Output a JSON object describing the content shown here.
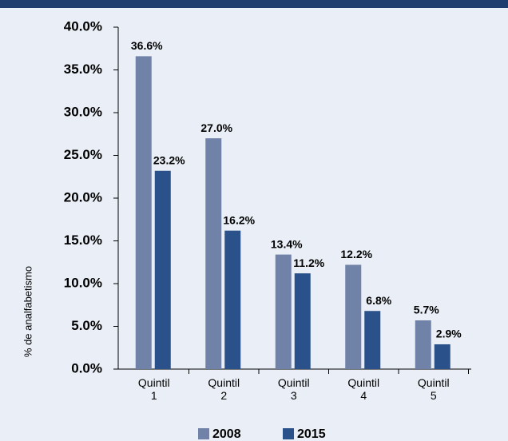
{
  "chart_data": {
    "type": "bar",
    "y_label": "% de analfabetismo",
    "categories": [
      "Quintil 1",
      "Quintil 2",
      "Quintil 3",
      "Quintil 4",
      "Quintil 5"
    ],
    "series": [
      {
        "name": "2008",
        "color": "#7082a8",
        "values": [
          36.6,
          27.0,
          13.4,
          12.2,
          5.7
        ],
        "value_labels": [
          "36.6%",
          "27.0%",
          "13.4%",
          "12.2%",
          "5.7%"
        ]
      },
      {
        "name": "2015",
        "color": "#2a5189",
        "values": [
          23.2,
          16.2,
          11.2,
          6.8,
          2.9
        ],
        "value_labels": [
          "23.2%",
          "16.2%",
          "11.2%",
          "6.8%",
          "2.9%"
        ]
      }
    ],
    "ylim": [
      0,
      40
    ],
    "yticks": [
      {
        "value": 0,
        "label": "0.0%"
      },
      {
        "value": 5,
        "label": "5.0%"
      },
      {
        "value": 10,
        "label": "10.0%"
      },
      {
        "value": 15,
        "label": "15.0%"
      },
      {
        "value": 20,
        "label": "20.0%"
      },
      {
        "value": 25,
        "label": "25.0%"
      },
      {
        "value": 30,
        "label": "30.0%"
      },
      {
        "value": 35,
        "label": "35.0%"
      },
      {
        "value": 40,
        "label": "40.0%"
      }
    ],
    "legend": "bottom"
  }
}
